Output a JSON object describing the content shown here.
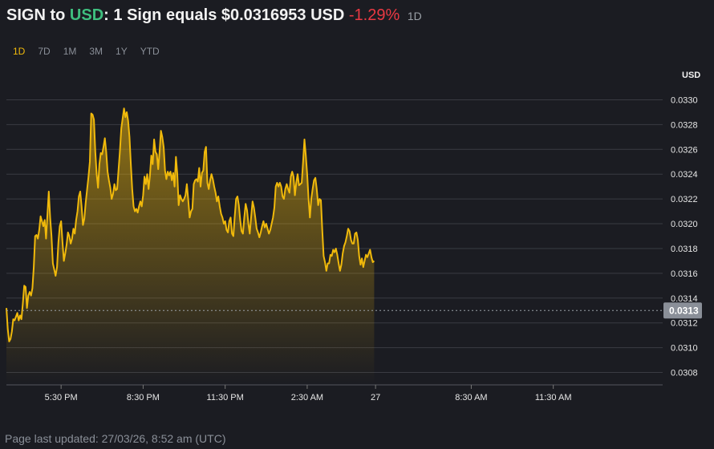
{
  "header": {
    "base": "SIGN",
    "to_word": "to",
    "quote": "USD",
    "colon": ":",
    "equals_text": "1 Sign equals $0.0316953 USD",
    "change": "-1.29%",
    "period": "1D"
  },
  "tabs": [
    {
      "label": "1D",
      "active": true
    },
    {
      "label": "7D",
      "active": false
    },
    {
      "label": "1M",
      "active": false
    },
    {
      "label": "3M",
      "active": false
    },
    {
      "label": "1Y",
      "active": false
    },
    {
      "label": "YTD",
      "active": false
    }
  ],
  "footer": {
    "text": "Page last updated: 27/03/26, 8:52 am (UTC)"
  },
  "colors": {
    "line": "#f0b90b",
    "quote_accent": "#3fbf7f",
    "negative": "#ea3943",
    "grid": "#3a3b42",
    "background": "#1b1c22"
  },
  "chart_data": {
    "type": "area",
    "unit_label": "USD",
    "ylim": [
      0.0307,
      0.0331
    ],
    "y_ticks": [
      "0.0308",
      "0.0310",
      "0.0312",
      "0.0314",
      "0.0316",
      "0.0318",
      "0.0320",
      "0.0322",
      "0.0324",
      "0.0326",
      "0.0328",
      "0.0330"
    ],
    "x_ticks": [
      {
        "label": "5:30 PM",
        "h": 2
      },
      {
        "label": "8:30 PM",
        "h": 5
      },
      {
        "label": "11:30 PM",
        "h": 8
      },
      {
        "label": "2:30 AM",
        "h": 11
      },
      {
        "label": "27",
        "h": 13.5
      },
      {
        "label": "8:30 AM",
        "h": 17
      },
      {
        "label": "11:30 AM",
        "h": 20
      }
    ],
    "xlim": [
      0,
      24
    ],
    "reference_value": 0.0313,
    "reference_label": "0.0313",
    "grid": true,
    "points": [
      [
        0.0,
        0.03132
      ],
      [
        0.05,
        0.03115
      ],
      [
        0.1,
        0.03105
      ],
      [
        0.15,
        0.03107
      ],
      [
        0.2,
        0.03113
      ],
      [
        0.25,
        0.03123
      ],
      [
        0.3,
        0.03122
      ],
      [
        0.4,
        0.03128
      ],
      [
        0.45,
        0.03122
      ],
      [
        0.5,
        0.03126
      ],
      [
        0.55,
        0.03123
      ],
      [
        0.6,
        0.03135
      ],
      [
        0.65,
        0.0315
      ],
      [
        0.7,
        0.03149
      ],
      [
        0.75,
        0.03132
      ],
      [
        0.8,
        0.03142
      ],
      [
        0.85,
        0.03145
      ],
      [
        0.9,
        0.03142
      ],
      [
        0.95,
        0.03148
      ],
      [
        1.0,
        0.03165
      ],
      [
        1.05,
        0.0319
      ],
      [
        1.1,
        0.03191
      ],
      [
        1.15,
        0.03188
      ],
      [
        1.2,
        0.03195
      ],
      [
        1.25,
        0.03206
      ],
      [
        1.3,
        0.03202
      ],
      [
        1.35,
        0.03198
      ],
      [
        1.4,
        0.03203
      ],
      [
        1.45,
        0.03188
      ],
      [
        1.55,
        0.03226
      ],
      [
        1.6,
        0.03205
      ],
      [
        1.65,
        0.0319
      ],
      [
        1.7,
        0.03168
      ],
      [
        1.75,
        0.03163
      ],
      [
        1.8,
        0.03158
      ],
      [
        1.85,
        0.03165
      ],
      [
        1.9,
        0.03185
      ],
      [
        1.95,
        0.03198
      ],
      [
        2.0,
        0.03202
      ],
      [
        2.05,
        0.03185
      ],
      [
        2.1,
        0.0317
      ],
      [
        2.15,
        0.03176
      ],
      [
        2.2,
        0.03183
      ],
      [
        2.25,
        0.03193
      ],
      [
        2.3,
        0.0319
      ],
      [
        2.35,
        0.03184
      ],
      [
        2.4,
        0.03188
      ],
      [
        2.45,
        0.03196
      ],
      [
        2.5,
        0.03192
      ],
      [
        2.55,
        0.03203
      ],
      [
        2.6,
        0.0321
      ],
      [
        2.65,
        0.03222
      ],
      [
        2.7,
        0.03226
      ],
      [
        2.75,
        0.03214
      ],
      [
        2.8,
        0.03199
      ],
      [
        2.85,
        0.03204
      ],
      [
        2.9,
        0.03217
      ],
      [
        3.0,
        0.03238
      ],
      [
        3.05,
        0.0325
      ],
      [
        3.1,
        0.03289
      ],
      [
        3.15,
        0.03288
      ],
      [
        3.2,
        0.03284
      ],
      [
        3.25,
        0.03258
      ],
      [
        3.3,
        0.0324
      ],
      [
        3.35,
        0.03229
      ],
      [
        3.4,
        0.03248
      ],
      [
        3.45,
        0.03257
      ],
      [
        3.5,
        0.03256
      ],
      [
        3.55,
        0.03262
      ],
      [
        3.6,
        0.03269
      ],
      [
        3.65,
        0.03258
      ],
      [
        3.7,
        0.03242
      ],
      [
        3.75,
        0.03235
      ],
      [
        3.8,
        0.03229
      ],
      [
        3.85,
        0.0322
      ],
      [
        3.9,
        0.03224
      ],
      [
        3.95,
        0.03232
      ],
      [
        4.0,
        0.03227
      ],
      [
        4.05,
        0.03228
      ],
      [
        4.1,
        0.03243
      ],
      [
        4.15,
        0.03258
      ],
      [
        4.2,
        0.03277
      ],
      [
        4.25,
        0.03285
      ],
      [
        4.3,
        0.03293
      ],
      [
        4.35,
        0.03286
      ],
      [
        4.4,
        0.0329
      ],
      [
        4.45,
        0.03283
      ],
      [
        4.5,
        0.0327
      ],
      [
        4.55,
        0.03248
      ],
      [
        4.6,
        0.03228
      ],
      [
        4.65,
        0.03214
      ],
      [
        4.7,
        0.0321
      ],
      [
        4.75,
        0.03212
      ],
      [
        4.8,
        0.03209
      ],
      [
        4.85,
        0.03214
      ],
      [
        4.9,
        0.03218
      ],
      [
        4.95,
        0.03214
      ],
      [
        5.0,
        0.03223
      ],
      [
        5.05,
        0.03238
      ],
      [
        5.1,
        0.03232
      ],
      [
        5.15,
        0.0324
      ],
      [
        5.2,
        0.03228
      ],
      [
        5.25,
        0.03239
      ],
      [
        5.3,
        0.03255
      ],
      [
        5.35,
        0.03248
      ],
      [
        5.4,
        0.03268
      ],
      [
        5.45,
        0.03258
      ],
      [
        5.5,
        0.03256
      ],
      [
        5.55,
        0.03244
      ],
      [
        5.6,
        0.03258
      ],
      [
        5.65,
        0.03275
      ],
      [
        5.7,
        0.0327
      ],
      [
        5.75,
        0.03262
      ],
      [
        5.8,
        0.03243
      ],
      [
        5.85,
        0.03236
      ],
      [
        5.9,
        0.03242
      ],
      [
        5.95,
        0.03239
      ],
      [
        6.0,
        0.03242
      ],
      [
        6.05,
        0.03235
      ],
      [
        6.1,
        0.03241
      ],
      [
        6.15,
        0.0323
      ],
      [
        6.2,
        0.03254
      ],
      [
        6.25,
        0.0324
      ],
      [
        6.3,
        0.03215
      ],
      [
        6.35,
        0.03223
      ],
      [
        6.4,
        0.0322
      ],
      [
        6.45,
        0.03218
      ],
      [
        6.5,
        0.0322
      ],
      [
        6.55,
        0.03223
      ],
      [
        6.6,
        0.03232
      ],
      [
        6.65,
        0.03219
      ],
      [
        6.7,
        0.03205
      ],
      [
        6.75,
        0.0321
      ],
      [
        6.8,
        0.03212
      ],
      [
        6.85,
        0.03232
      ],
      [
        6.9,
        0.03235
      ],
      [
        6.95,
        0.03236
      ],
      [
        7.0,
        0.03234
      ],
      [
        7.05,
        0.03245
      ],
      [
        7.1,
        0.0323
      ],
      [
        7.15,
        0.03241
      ],
      [
        7.2,
        0.03243
      ],
      [
        7.25,
        0.03258
      ],
      [
        7.3,
        0.03262
      ],
      [
        7.35,
        0.03233
      ],
      [
        7.4,
        0.03228
      ],
      [
        7.45,
        0.03235
      ],
      [
        7.5,
        0.0324
      ],
      [
        7.55,
        0.03236
      ],
      [
        7.6,
        0.0323
      ],
      [
        7.65,
        0.03225
      ],
      [
        7.7,
        0.03218
      ],
      [
        7.75,
        0.03222
      ],
      [
        7.8,
        0.03214
      ],
      [
        7.85,
        0.03208
      ],
      [
        7.9,
        0.03205
      ],
      [
        7.95,
        0.032
      ],
      [
        8.0,
        0.03202
      ],
      [
        8.05,
        0.03195
      ],
      [
        8.1,
        0.03193
      ],
      [
        8.15,
        0.03202
      ],
      [
        8.2,
        0.03205
      ],
      [
        8.25,
        0.03192
      ],
      [
        8.3,
        0.0319
      ],
      [
        8.35,
        0.03206
      ],
      [
        8.4,
        0.0322
      ],
      [
        8.45,
        0.03222
      ],
      [
        8.5,
        0.03215
      ],
      [
        8.55,
        0.03203
      ],
      [
        8.6,
        0.03194
      ],
      [
        8.65,
        0.03192
      ],
      [
        8.7,
        0.03205
      ],
      [
        8.75,
        0.03216
      ],
      [
        8.8,
        0.03211
      ],
      [
        8.85,
        0.032
      ],
      [
        8.9,
        0.03192
      ],
      [
        8.95,
        0.03205
      ],
      [
        9.0,
        0.03218
      ],
      [
        9.05,
        0.03213
      ],
      [
        9.1,
        0.03205
      ],
      [
        9.15,
        0.03196
      ],
      [
        9.2,
        0.03193
      ],
      [
        9.25,
        0.03189
      ],
      [
        9.3,
        0.03193
      ],
      [
        9.35,
        0.03198
      ],
      [
        9.4,
        0.03202
      ],
      [
        9.45,
        0.03197
      ],
      [
        9.5,
        0.032
      ],
      [
        9.55,
        0.03196
      ],
      [
        9.6,
        0.03192
      ],
      [
        9.65,
        0.03195
      ],
      [
        9.7,
        0.032
      ],
      [
        9.75,
        0.03205
      ],
      [
        9.8,
        0.03213
      ],
      [
        9.85,
        0.0323
      ],
      [
        9.9,
        0.03233
      ],
      [
        9.95,
        0.0323
      ],
      [
        10.0,
        0.03233
      ],
      [
        10.05,
        0.0323
      ],
      [
        10.1,
        0.03222
      ],
      [
        10.15,
        0.0322
      ],
      [
        10.2,
        0.03228
      ],
      [
        10.25,
        0.03232
      ],
      [
        10.3,
        0.03228
      ],
      [
        10.35,
        0.03225
      ],
      [
        10.4,
        0.03238
      ],
      [
        10.45,
        0.03242
      ],
      [
        10.5,
        0.03238
      ],
      [
        10.55,
        0.03223
      ],
      [
        10.6,
        0.03233
      ],
      [
        10.65,
        0.0324
      ],
      [
        10.7,
        0.03231
      ],
      [
        10.75,
        0.03232
      ],
      [
        10.8,
        0.03233
      ],
      [
        10.85,
        0.0325
      ],
      [
        10.9,
        0.03268
      ],
      [
        10.95,
        0.03255
      ],
      [
        11.0,
        0.0324
      ],
      [
        11.05,
        0.0322
      ],
      [
        11.1,
        0.03205
      ],
      [
        11.15,
        0.0322
      ],
      [
        11.2,
        0.03228
      ],
      [
        11.25,
        0.03235
      ],
      [
        11.3,
        0.03237
      ],
      [
        11.35,
        0.03228
      ],
      [
        11.4,
        0.03215
      ],
      [
        11.45,
        0.0322
      ],
      [
        11.5,
        0.03219
      ],
      [
        11.55,
        0.03195
      ],
      [
        11.6,
        0.03174
      ],
      [
        11.65,
        0.03169
      ],
      [
        11.7,
        0.03162
      ],
      [
        11.75,
        0.03168
      ],
      [
        11.8,
        0.03168
      ],
      [
        11.85,
        0.03175
      ],
      [
        11.9,
        0.03174
      ],
      [
        11.95,
        0.03179
      ],
      [
        12.0,
        0.03177
      ],
      [
        12.05,
        0.0318
      ],
      [
        12.1,
        0.03175
      ],
      [
        12.15,
        0.03168
      ],
      [
        12.2,
        0.03162
      ],
      [
        12.25,
        0.03167
      ],
      [
        12.3,
        0.03176
      ],
      [
        12.35,
        0.03182
      ],
      [
        12.4,
        0.03185
      ],
      [
        12.45,
        0.0319
      ],
      [
        12.5,
        0.03196
      ],
      [
        12.55,
        0.03194
      ],
      [
        12.6,
        0.03187
      ],
      [
        12.65,
        0.03184
      ],
      [
        12.7,
        0.03184
      ],
      [
        12.75,
        0.03192
      ],
      [
        12.8,
        0.03193
      ],
      [
        12.85,
        0.03187
      ],
      [
        12.9,
        0.03174
      ],
      [
        12.95,
        0.03167
      ],
      [
        13.0,
        0.03172
      ],
      [
        13.05,
        0.03165
      ],
      [
        13.1,
        0.0317
      ],
      [
        13.15,
        0.03175
      ],
      [
        13.2,
        0.03173
      ],
      [
        13.25,
        0.03176
      ],
      [
        13.3,
        0.03179
      ],
      [
        13.35,
        0.03173
      ],
      [
        13.4,
        0.03169
      ],
      [
        13.45,
        0.0317
      ]
    ]
  }
}
